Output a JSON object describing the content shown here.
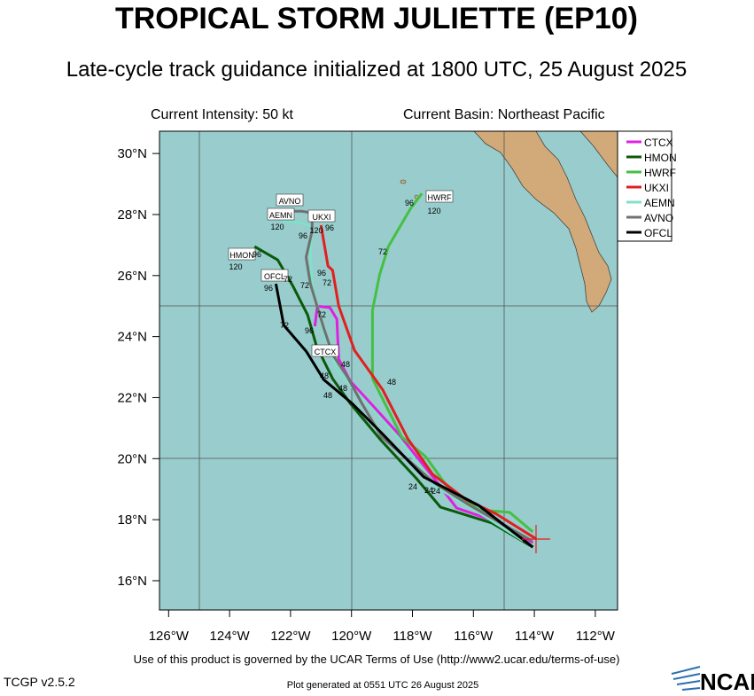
{
  "chart_data": {
    "type": "track",
    "title": "TROPICAL STORM JULIETTE (EP10)",
    "subtitle": "Late-cycle track guidance initialized at 1800 UTC, 25 August 2025",
    "intensity": "Current Intensity: 50 kt",
    "basin": "Current Basin: Northeast Pacific",
    "footer": "Use of this product is governed by the UCAR Terms of Use (http://www2.ucar.edu/terms-of-use)",
    "version": "TCGP v2.5.2",
    "generated": "Plot generated at 0551 UTC   26 August 2025",
    "logo": "NCAR",
    "xlim": [
      -126.3,
      -111.27
    ],
    "ylim": [
      15.04,
      30.73
    ],
    "xticks": [
      {
        "value": -126,
        "label": "126°W"
      },
      {
        "value": -124,
        "label": "124°W"
      },
      {
        "value": -122,
        "label": "122°W"
      },
      {
        "value": -120,
        "label": "120°W"
      },
      {
        "value": -118,
        "label": "118°W"
      },
      {
        "value": -116,
        "label": "116°W"
      },
      {
        "value": -114,
        "label": "114°W"
      },
      {
        "value": -112,
        "label": "112°W"
      }
    ],
    "yticks": [
      {
        "value": 16,
        "label": "16°N"
      },
      {
        "value": 18,
        "label": "18°N"
      },
      {
        "value": 20,
        "label": "20°N"
      },
      {
        "value": 22,
        "label": "22°N"
      },
      {
        "value": 24,
        "label": "24°N"
      },
      {
        "value": 26,
        "label": "26°N"
      },
      {
        "value": 28,
        "label": "28°N"
      },
      {
        "value": 30,
        "label": "30°N"
      }
    ],
    "series": [
      {
        "name": "CTCX",
        "color": "#e020e0",
        "x": [
          -114.05,
          -115.53,
          -116.55,
          -117.28,
          -118.44,
          -119.31,
          -120.04,
          -120.42,
          -120.48,
          -120.71,
          -121.12,
          -121.2
        ],
        "values": [
          17.25,
          18.03,
          18.38,
          19.34,
          20.79,
          21.75,
          22.54,
          23.26,
          24.57,
          24.95,
          25.0,
          24.34
        ]
      },
      {
        "name": "HMON",
        "color": "#0a5a0a",
        "x": [
          -114.05,
          -115.39,
          -117.08,
          -117.86,
          -119.02,
          -120.04,
          -120.62,
          -121.15,
          -121.44,
          -121.93,
          -122.42,
          -123.18
        ],
        "values": [
          17.1,
          17.89,
          18.41,
          19.34,
          20.59,
          21.81,
          22.62,
          23.7,
          24.71,
          25.67,
          26.51,
          26.95
        ]
      },
      {
        "name": "HWRF",
        "color": "#44c044",
        "x": [
          -114.05,
          -114.81,
          -115.83,
          -116.9,
          -117.57,
          -118.35,
          -119.31,
          -119.31,
          -119.08,
          -118.79,
          -118.06,
          -117.69
        ],
        "values": [
          17.6,
          18.24,
          18.32,
          19.14,
          20.07,
          20.71,
          22.62,
          24.86,
          26.02,
          26.95,
          28.2,
          28.69
        ]
      },
      {
        "name": "UKXI",
        "color": "#e02020",
        "x": [
          -113.94,
          -115.24,
          -116.26,
          -117.34,
          -118.15,
          -118.97,
          -119.9,
          -120.42,
          -120.62,
          -120.77,
          -121.0
        ],
        "values": [
          17.37,
          18.18,
          18.67,
          19.49,
          20.65,
          22.25,
          23.55,
          25.0,
          26.17,
          26.31,
          27.65
        ]
      },
      {
        "name": "AEMN",
        "color": "#80e0c8",
        "x": [
          -114.37,
          -115.83,
          -117.28,
          -118.44,
          -119.75,
          -120.48,
          -120.91,
          -121.29,
          -121.35,
          -121.29,
          -121.78,
          -122.28
        ],
        "values": [
          17.31,
          18.24,
          19.11,
          20.65,
          22.1,
          22.88,
          24.13,
          25.73,
          26.75,
          27.62,
          27.76,
          27.76
        ]
      },
      {
        "name": "AVNO",
        "color": "#707070",
        "x": [
          -114.08,
          -116.12,
          -117.28,
          -119.02,
          -119.66,
          -120.13,
          -120.62,
          -120.91,
          -121.35,
          -121.49,
          -121.29,
          -121.29,
          -121.64,
          -122.08
        ],
        "values": [
          17.31,
          18.47,
          19.2,
          20.73,
          21.81,
          22.68,
          23.41,
          24.28,
          25.73,
          26.6,
          27.47,
          28.05,
          28.11,
          28.11
        ]
      },
      {
        "name": "OFCL",
        "color": "#000000",
        "x": [
          -114.05,
          -115.83,
          -117.63,
          -119.02,
          -119.98,
          -120.91,
          -121.49,
          -122.22,
          -122.48
        ],
        "values": [
          17.1,
          18.47,
          19.4,
          20.85,
          21.81,
          22.59,
          23.52,
          24.37,
          25.73
        ]
      }
    ],
    "hour_labels": [
      "72",
      "96",
      "120",
      "120",
      "96",
      "96",
      "120",
      "96",
      "72",
      "72",
      "72",
      "96",
      "120",
      "96",
      "72",
      "72",
      "96",
      "48",
      "48",
      "48",
      "48",
      "48",
      "24",
      "24",
      "24"
    ]
  }
}
